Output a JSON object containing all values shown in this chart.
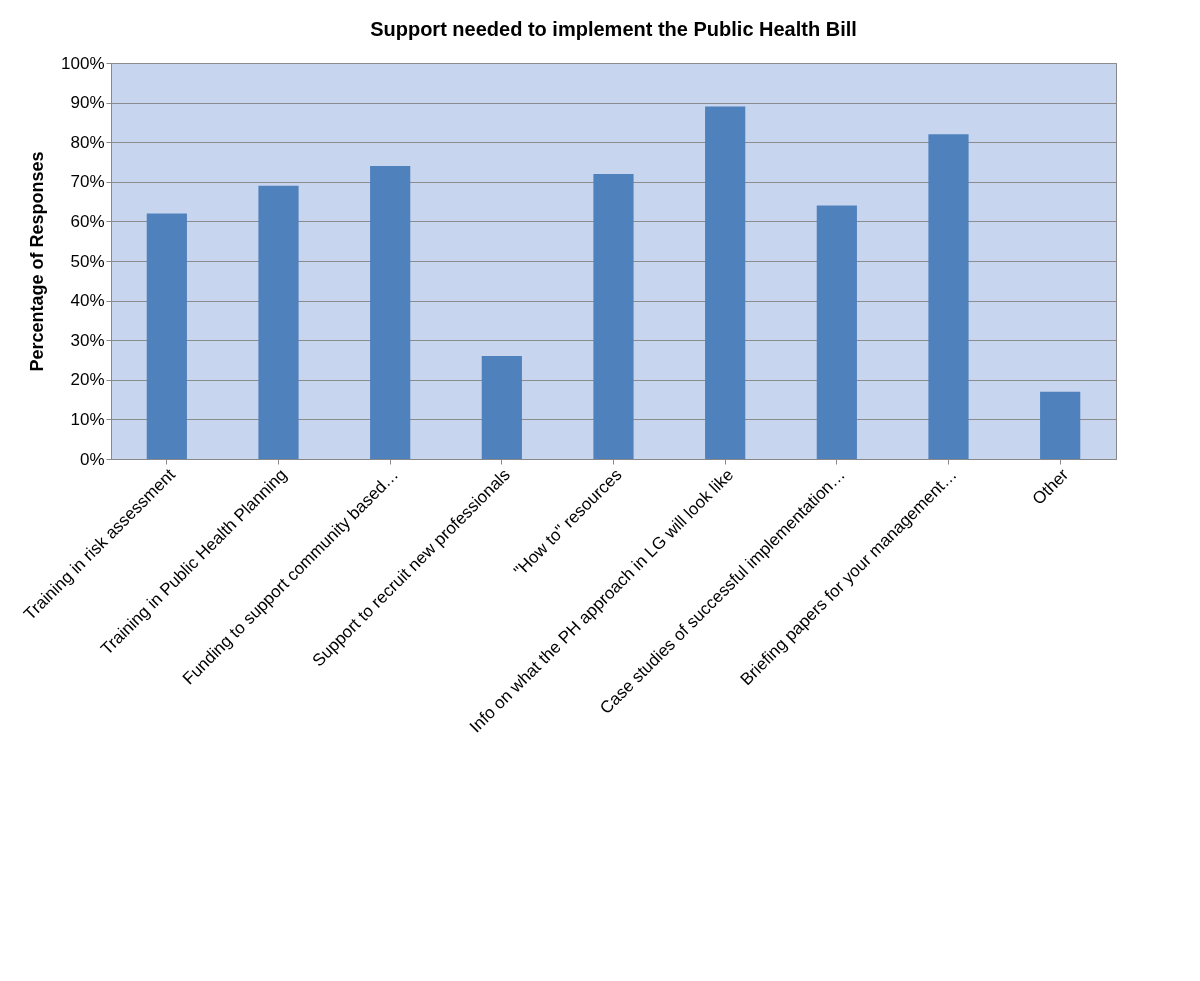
{
  "chart_data": {
    "type": "bar",
    "title": "Support needed to implement the Public Health Bill",
    "ylabel": "Percentage of Responses",
    "categories": [
      "Training in risk assessment",
      "Training in Public Health Planning",
      "Funding to support community based…",
      "Support to recruit new professionals",
      "\"How to\" resources",
      "Info on what the PH approach in LG will look like",
      "Case studies of successful implementation…",
      "Briefing papers for your management…",
      "Other"
    ],
    "values": [
      62,
      69,
      74,
      26,
      72,
      89,
      64,
      82,
      17
    ],
    "color": "#4f81bd",
    "ylim": [
      0,
      100
    ],
    "yticks": [
      {
        "value": 0,
        "label": "0%"
      },
      {
        "value": 10,
        "label": "10%"
      },
      {
        "value": 20,
        "label": "20%"
      },
      {
        "value": 30,
        "label": "30%"
      },
      {
        "value": 40,
        "label": "40%"
      },
      {
        "value": 50,
        "label": "50%"
      },
      {
        "value": 60,
        "label": "60%"
      },
      {
        "value": 70,
        "label": "70%"
      },
      {
        "value": 80,
        "label": "80%"
      },
      {
        "value": 90,
        "label": "90%"
      },
      {
        "value": 100,
        "label": "100%"
      }
    ],
    "grid": true
  }
}
